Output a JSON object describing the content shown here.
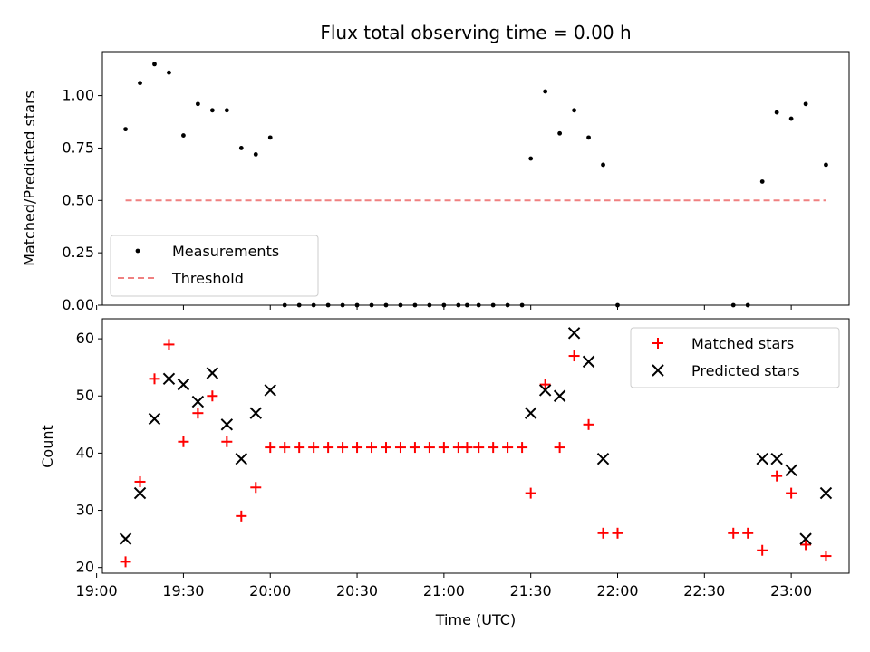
{
  "chart_data": [
    {
      "type": "scatter",
      "title": "Flux total observing time = 0.00 h",
      "xlabel": "",
      "ylabel": "Matched/Predicted stars",
      "xlim": [
        "19:02",
        "23:20"
      ],
      "ylim": [
        0,
        1.21
      ],
      "yticks": [
        "0.00",
        "0.25",
        "0.50",
        "0.75",
        "1.00"
      ],
      "legend_position": "lower-left",
      "grid": false,
      "series": [
        {
          "name": "Measurements",
          "kind": "scatter",
          "color": "#000000",
          "marker": "dot",
          "x": [
            "19:10",
            "19:15",
            "19:20",
            "19:25",
            "19:30",
            "19:35",
            "19:40",
            "19:45",
            "19:50",
            "19:55",
            "20:00",
            "20:05",
            "20:10",
            "20:15",
            "20:20",
            "20:25",
            "20:30",
            "20:35",
            "20:40",
            "20:45",
            "20:50",
            "20:55",
            "21:00",
            "21:05",
            "21:08",
            "21:12",
            "21:17",
            "21:22",
            "21:27",
            "21:30",
            "21:35",
            "21:40",
            "21:45",
            "21:50",
            "21:55",
            "22:00",
            "22:40",
            "22:45",
            "22:50",
            "22:55",
            "23:00",
            "23:05",
            "23:12"
          ],
          "y": [
            0.84,
            1.06,
            1.15,
            1.11,
            0.81,
            0.96,
            0.93,
            0.93,
            0.75,
            0.72,
            0.8,
            0,
            0,
            0,
            0,
            0,
            0,
            0,
            0,
            0,
            0,
            0,
            0,
            0,
            0,
            0,
            0,
            0,
            0,
            0.7,
            1.02,
            0.82,
            0.93,
            0.8,
            0.67,
            0,
            0,
            0,
            0.59,
            0.92,
            0.89,
            0.96,
            0.67
          ]
        },
        {
          "name": "Threshold",
          "kind": "line",
          "color": "#f08080",
          "dash": "dashed",
          "x": [
            "19:10",
            "23:12"
          ],
          "y": [
            0.5,
            0.5
          ]
        }
      ]
    },
    {
      "type": "scatter",
      "title": "",
      "xlabel": "Time (UTC)",
      "ylabel": "Count",
      "xlim": [
        "19:02",
        "23:20"
      ],
      "ylim": [
        19,
        63.5
      ],
      "yticks": [
        "20",
        "30",
        "40",
        "50",
        "60"
      ],
      "xticks": [
        "19:00",
        "19:30",
        "20:00",
        "20:30",
        "21:00",
        "21:30",
        "22:00",
        "22:30",
        "23:00"
      ],
      "legend_position": "upper-right",
      "grid": false,
      "series": [
        {
          "name": "Matched stars",
          "kind": "scatter",
          "color": "#ff0000",
          "marker": "plus",
          "x": [
            "19:10",
            "19:15",
            "19:20",
            "19:25",
            "19:30",
            "19:35",
            "19:40",
            "19:45",
            "19:50",
            "19:55",
            "20:00",
            "20:05",
            "20:10",
            "20:15",
            "20:20",
            "20:25",
            "20:30",
            "20:35",
            "20:40",
            "20:45",
            "20:50",
            "20:55",
            "21:00",
            "21:05",
            "21:08",
            "21:12",
            "21:17",
            "21:22",
            "21:27",
            "21:30",
            "21:35",
            "21:40",
            "21:45",
            "21:50",
            "21:55",
            "22:00",
            "22:40",
            "22:45",
            "22:50",
            "22:55",
            "23:00",
            "23:05",
            "23:12"
          ],
          "y": [
            21,
            35,
            53,
            59,
            42,
            47,
            50,
            42,
            29,
            34,
            41,
            41,
            41,
            41,
            41,
            41,
            41,
            41,
            41,
            41,
            41,
            41,
            41,
            41,
            41,
            41,
            41,
            41,
            41,
            33,
            52,
            41,
            57,
            45,
            26,
            26,
            26,
            26,
            23,
            36,
            33,
            24,
            22
          ]
        },
        {
          "name": "Predicted stars",
          "kind": "scatter",
          "color": "#000000",
          "marker": "x",
          "x": [
            "19:10",
            "19:15",
            "19:20",
            "19:25",
            "19:30",
            "19:35",
            "19:40",
            "19:45",
            "19:50",
            "19:55",
            "20:00",
            "21:30",
            "21:35",
            "21:40",
            "21:45",
            "21:50",
            "21:55",
            "22:50",
            "22:55",
            "23:00",
            "23:05",
            "23:12"
          ],
          "y": [
            25,
            33,
            46,
            53,
            52,
            49,
            54,
            45,
            39,
            47,
            51,
            47,
            51,
            50,
            61,
            56,
            39,
            39,
            39,
            37,
            25,
            33
          ]
        }
      ]
    }
  ]
}
